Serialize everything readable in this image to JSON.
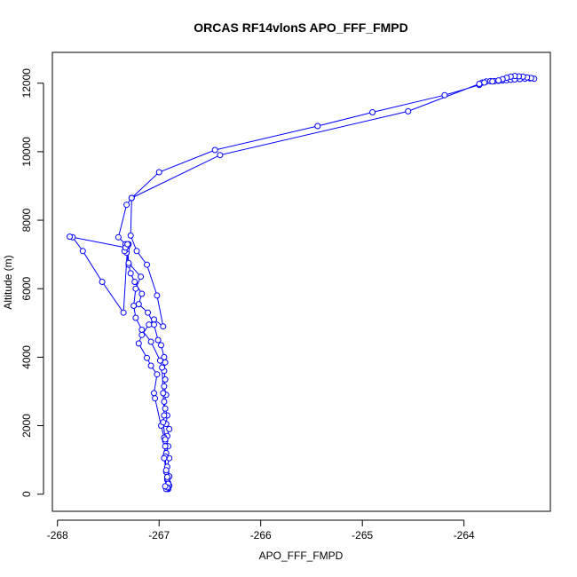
{
  "chart_data": {
    "type": "line",
    "title": "ORCAS RF14vlonS APO_FFF_FMPD",
    "xlabel": "APO_FFF_FMPD",
    "ylabel": "Altitude (m)",
    "xlim": [
      -268.05,
      -263.15
    ],
    "ylim": [
      -500,
      12900
    ],
    "xticks": [
      -268,
      -267,
      -266,
      -265,
      -264
    ],
    "yticks": [
      0,
      2000,
      4000,
      6000,
      8000,
      10000,
      12000
    ],
    "grid": false,
    "legend": "none",
    "series_color": "#0000ff",
    "series": [
      {
        "points": [
          [
            -266.91,
            150
          ],
          [
            -266.92,
            200
          ],
          [
            -266.9,
            250
          ],
          [
            -266.91,
            320
          ],
          [
            -266.92,
            420
          ],
          [
            -266.9,
            520
          ],
          [
            -266.93,
            650
          ],
          [
            -266.92,
            800
          ],
          [
            -266.9,
            1050
          ],
          [
            -266.93,
            1200
          ],
          [
            -266.91,
            1400
          ],
          [
            -266.94,
            1550
          ],
          [
            -266.92,
            1700
          ],
          [
            -266.9,
            1900
          ],
          [
            -266.93,
            2050
          ],
          [
            -266.92,
            2300
          ],
          [
            -266.94,
            2500
          ],
          [
            -266.95,
            2700
          ],
          [
            -266.93,
            2900
          ],
          [
            -266.95,
            3150
          ],
          [
            -266.94,
            3350
          ],
          [
            -266.95,
            3600
          ],
          [
            -266.94,
            3850
          ],
          [
            -266.95,
            4000
          ],
          [
            -266.98,
            4350
          ],
          [
            -267.01,
            4500
          ],
          [
            -267.05,
            4950
          ],
          [
            -267.11,
            5300
          ],
          [
            -267.2,
            5550
          ],
          [
            -267.17,
            5850
          ],
          [
            -267.24,
            6200
          ],
          [
            -267.28,
            6450
          ],
          [
            -267.3,
            6700
          ],
          [
            -267.32,
            7050
          ],
          [
            -267.32,
            7250
          ],
          [
            -267.3,
            7300
          ],
          [
            -267.32,
            7150
          ],
          [
            -267.34,
            7100
          ],
          [
            -267.33,
            7300
          ],
          [
            -267.4,
            7500
          ],
          [
            -267.32,
            8450
          ],
          [
            -267.27,
            8650
          ],
          [
            -267.0,
            9400
          ],
          [
            -266.45,
            10050
          ],
          [
            -265.44,
            10750
          ],
          [
            -264.9,
            11150
          ],
          [
            -264.19,
            11650
          ],
          [
            -263.85,
            11950
          ],
          [
            -263.82,
            12020
          ],
          [
            -263.78,
            12050
          ],
          [
            -263.74,
            12060
          ],
          [
            -263.7,
            12060
          ],
          [
            -263.66,
            12070
          ],
          [
            -263.62,
            12080
          ],
          [
            -263.58,
            12090
          ],
          [
            -263.54,
            12100
          ],
          [
            -263.5,
            12110
          ],
          [
            -263.45,
            12120
          ],
          [
            -263.4,
            12130
          ],
          [
            -263.35,
            12140
          ],
          [
            -263.31,
            12130
          ],
          [
            -263.34,
            12150
          ],
          [
            -263.38,
            12170
          ],
          [
            -263.42,
            12190
          ],
          [
            -263.46,
            12200
          ],
          [
            -263.5,
            12210
          ],
          [
            -263.54,
            12190
          ],
          [
            -263.58,
            12160
          ],
          [
            -263.62,
            12120
          ],
          [
            -263.66,
            12080
          ],
          [
            -263.72,
            12050
          ],
          [
            -263.8,
            12020
          ],
          [
            -263.85,
            11980
          ],
          [
            -264.55,
            11180
          ],
          [
            -266.4,
            9900
          ],
          [
            -267.27,
            8650
          ],
          [
            -267.28,
            7550
          ],
          [
            -267.22,
            7100
          ],
          [
            -267.12,
            6700
          ],
          [
            -267.02,
            5800
          ],
          [
            -266.96,
            4900
          ],
          [
            -267.05,
            5100
          ],
          [
            -267.1,
            4950
          ],
          [
            -267.17,
            4650
          ],
          [
            -267.2,
            4400
          ],
          [
            -267.12,
            3980
          ],
          [
            -267.08,
            3750
          ],
          [
            -267.02,
            3500
          ],
          [
            -267.05,
            2950
          ],
          [
            -267.04,
            2800
          ],
          [
            -266.98,
            2000
          ],
          [
            -266.95,
            1650
          ],
          [
            -266.94,
            1400
          ],
          [
            -266.94,
            1100
          ],
          [
            -266.93,
            700
          ],
          [
            -266.92,
            450
          ],
          [
            -266.91,
            300
          ],
          [
            -266.91,
            180
          ],
          [
            -266.93,
            150
          ],
          [
            -266.92,
            200
          ],
          [
            -266.94,
            230
          ],
          [
            -266.92,
            500
          ],
          [
            -266.95,
            1050
          ],
          [
            -266.94,
            1600
          ],
          [
            -266.96,
            2100
          ],
          [
            -266.95,
            2300
          ],
          [
            -266.96,
            2950
          ],
          [
            -266.97,
            3700
          ],
          [
            -266.99,
            3900
          ],
          [
            -267.08,
            4450
          ],
          [
            -267.17,
            4800
          ],
          [
            -267.23,
            5150
          ],
          [
            -267.25,
            5500
          ],
          [
            -267.23,
            6000
          ],
          [
            -267.18,
            6350
          ],
          [
            -267.3,
            6750
          ],
          [
            -267.31,
            7250
          ],
          [
            -267.35,
            5300
          ],
          [
            -267.56,
            6200
          ],
          [
            -267.75,
            7100
          ],
          [
            -267.85,
            7500
          ],
          [
            -267.88,
            7520
          ],
          [
            -267.33,
            7200
          ],
          [
            -267.31,
            7300
          ]
        ]
      }
    ]
  }
}
